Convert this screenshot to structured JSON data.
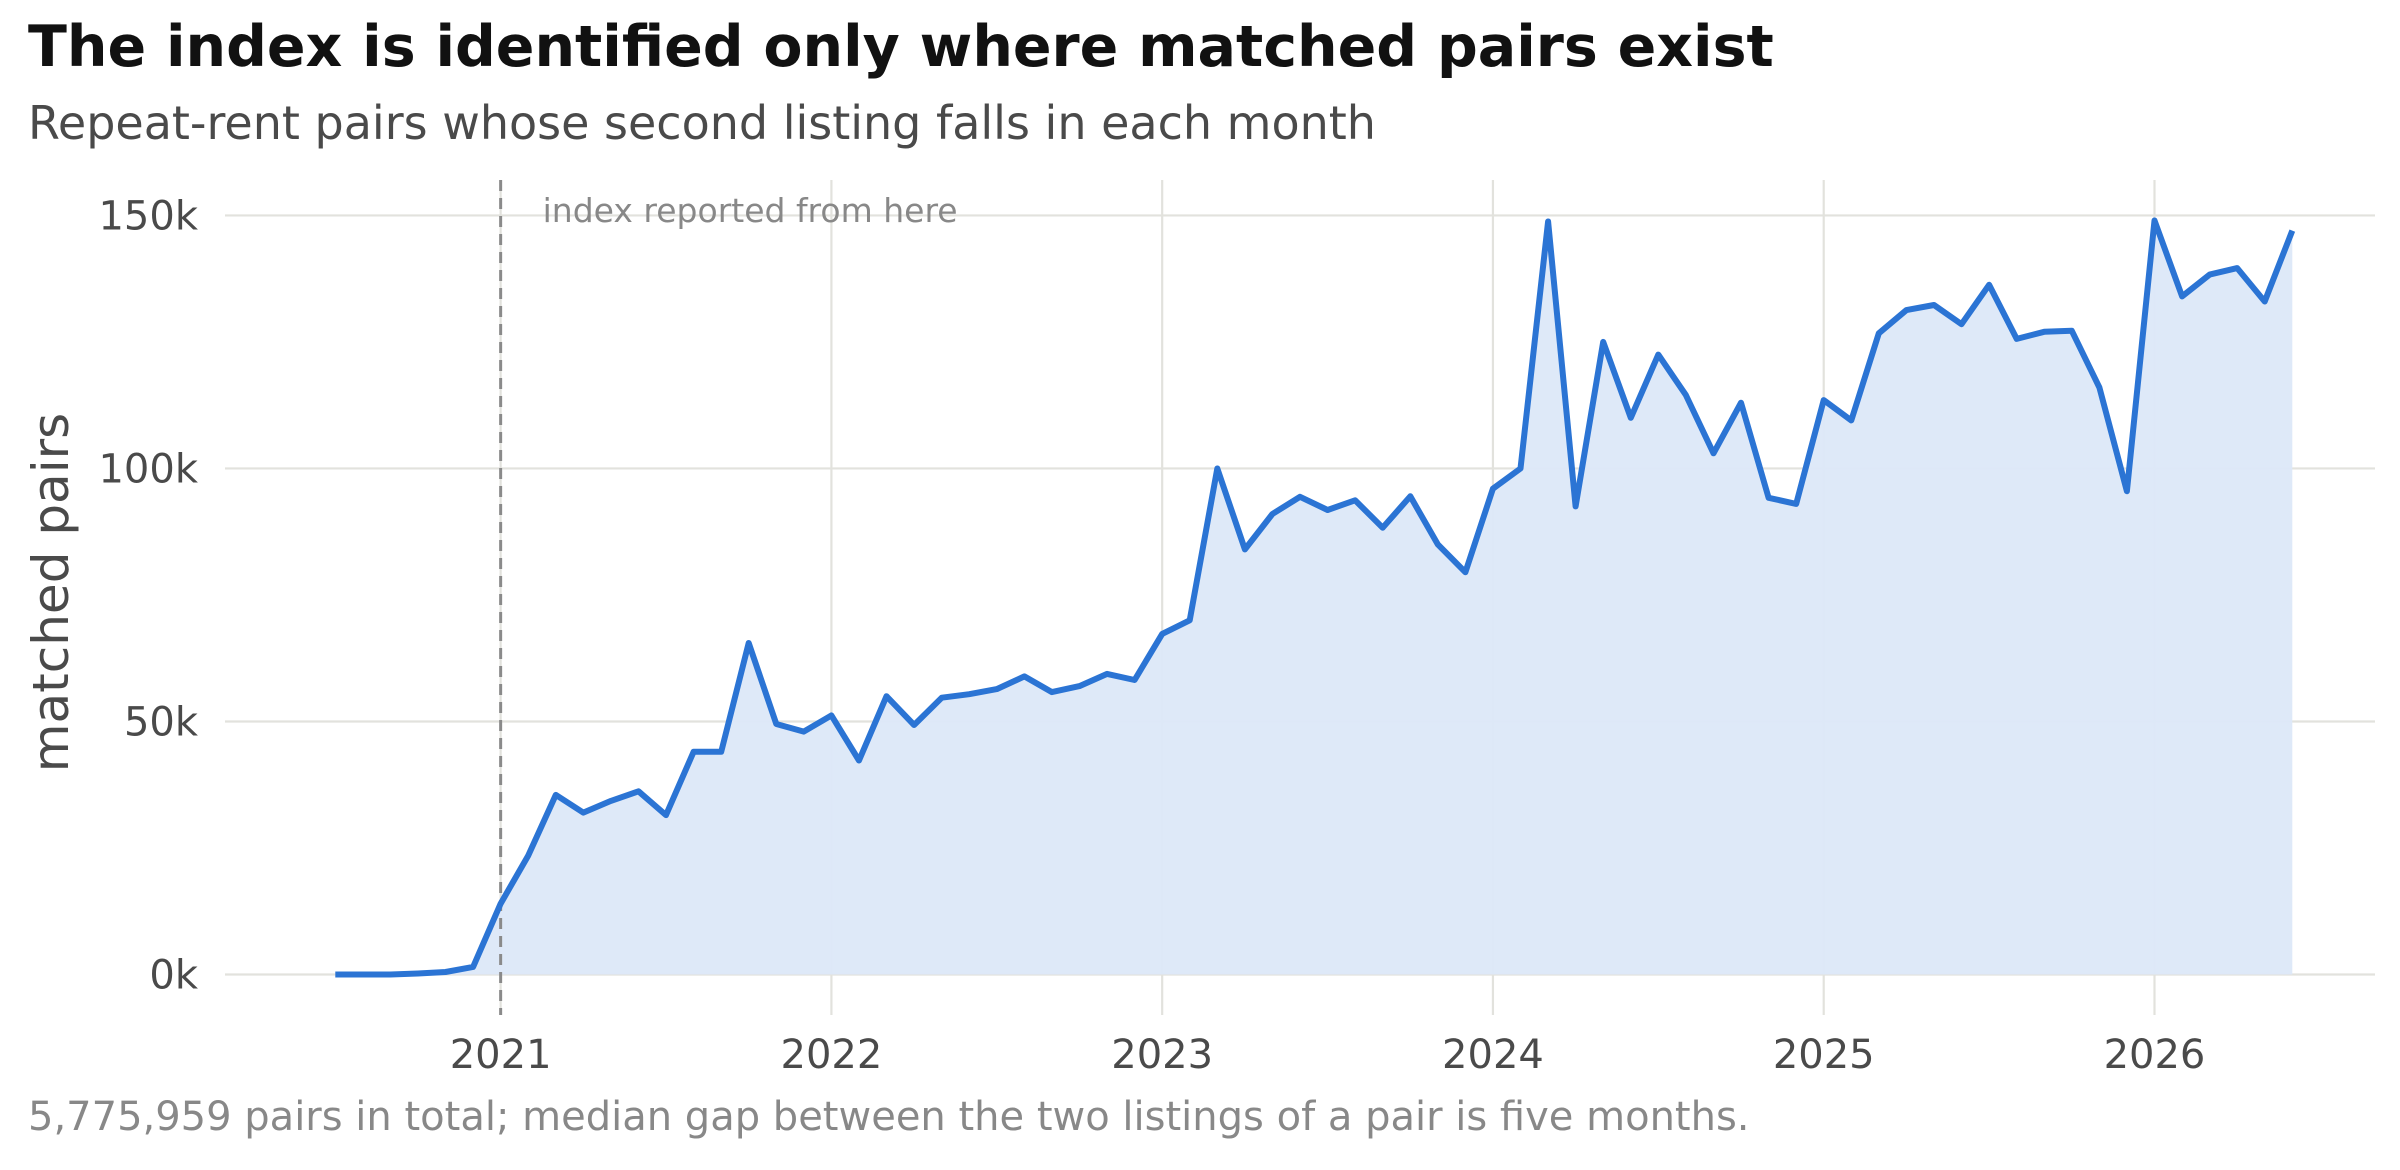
{
  "header": {
    "title": "The index is identified only where matched pairs exist",
    "subtitle": "Repeat-rent pairs whose second listing falls in each month"
  },
  "footer": {
    "caption": "5,775,959 pairs in total; median gap between the two listings of a pair is five months."
  },
  "colors": {
    "line": "#2b74d4",
    "fill": "#dce8f8",
    "grid": "#e2e2dd",
    "marker": "#8a8a8a"
  },
  "chart_data": {
    "type": "area",
    "title": "The index is identified only where matched pairs exist",
    "subtitle": "Repeat-rent pairs whose second listing falls in each month",
    "xlabel": "",
    "ylabel": "matched pairs",
    "x_range": [
      "2020-03",
      "2026-09"
    ],
    "ylim": [
      -8000,
      157000
    ],
    "x_ticks": [
      {
        "date": "2021-01",
        "label": "2021"
      },
      {
        "date": "2022-01",
        "label": "2022"
      },
      {
        "date": "2023-01",
        "label": "2023"
      },
      {
        "date": "2024-01",
        "label": "2024"
      },
      {
        "date": "2025-01",
        "label": "2025"
      },
      {
        "date": "2026-01",
        "label": "2026"
      }
    ],
    "y_ticks": [
      {
        "value": 0,
        "label": "0k"
      },
      {
        "value": 50000,
        "label": "50k"
      },
      {
        "value": 100000,
        "label": "100k"
      },
      {
        "value": 150000,
        "label": "150k"
      }
    ],
    "grid": true,
    "marker_line": {
      "date": "2021-01",
      "label": "index reported from here"
    },
    "series": [
      {
        "x": [
          "2020-07",
          "2020-08",
          "2020-09",
          "2020-10",
          "2020-11",
          "2020-12",
          "2021-01",
          "2021-02",
          "2021-03",
          "2021-04",
          "2021-05",
          "2021-06",
          "2021-07",
          "2021-08",
          "2021-09",
          "2021-10",
          "2021-11",
          "2021-12",
          "2022-01",
          "2022-02",
          "2022-03",
          "2022-04",
          "2022-05",
          "2022-06",
          "2022-07",
          "2022-08",
          "2022-09",
          "2022-10",
          "2022-11",
          "2022-12",
          "2023-01",
          "2023-02",
          "2023-03",
          "2023-04",
          "2023-05",
          "2023-06",
          "2023-07",
          "2023-08",
          "2023-09",
          "2023-10",
          "2023-11",
          "2023-12",
          "2024-01",
          "2024-02",
          "2024-03",
          "2024-04",
          "2024-05",
          "2024-06",
          "2024-07",
          "2024-08",
          "2024-09",
          "2024-10",
          "2024-11",
          "2024-12",
          "2025-01",
          "2025-02",
          "2025-03",
          "2025-04",
          "2025-05",
          "2025-06",
          "2025-07",
          "2025-08",
          "2025-09",
          "2025-10",
          "2025-11",
          "2025-12",
          "2026-01",
          "2026-02",
          "2026-03",
          "2026-04",
          "2026-05",
          "2026-06"
        ],
        "values": [
          0,
          0,
          0,
          200,
          500,
          1500,
          14000,
          23500,
          35500,
          32000,
          34300,
          36200,
          31500,
          44000,
          44000,
          65500,
          49500,
          48000,
          51200,
          42300,
          55000,
          49300,
          54700,
          55400,
          56400,
          58900,
          55800,
          57000,
          59400,
          58200,
          67300,
          70000,
          100000,
          84000,
          91000,
          94400,
          91800,
          93700,
          88300,
          94500,
          85000,
          79500,
          96000,
          100000,
          148800,
          92500,
          125000,
          110000,
          122500,
          114500,
          103000,
          113000,
          94200,
          93000,
          113500,
          109500,
          126700,
          131300,
          132300,
          128500,
          136300,
          125600,
          127000,
          127200,
          116000,
          95500,
          149000,
          134000,
          138300,
          139600,
          133000,
          147000
        ]
      }
    ]
  }
}
